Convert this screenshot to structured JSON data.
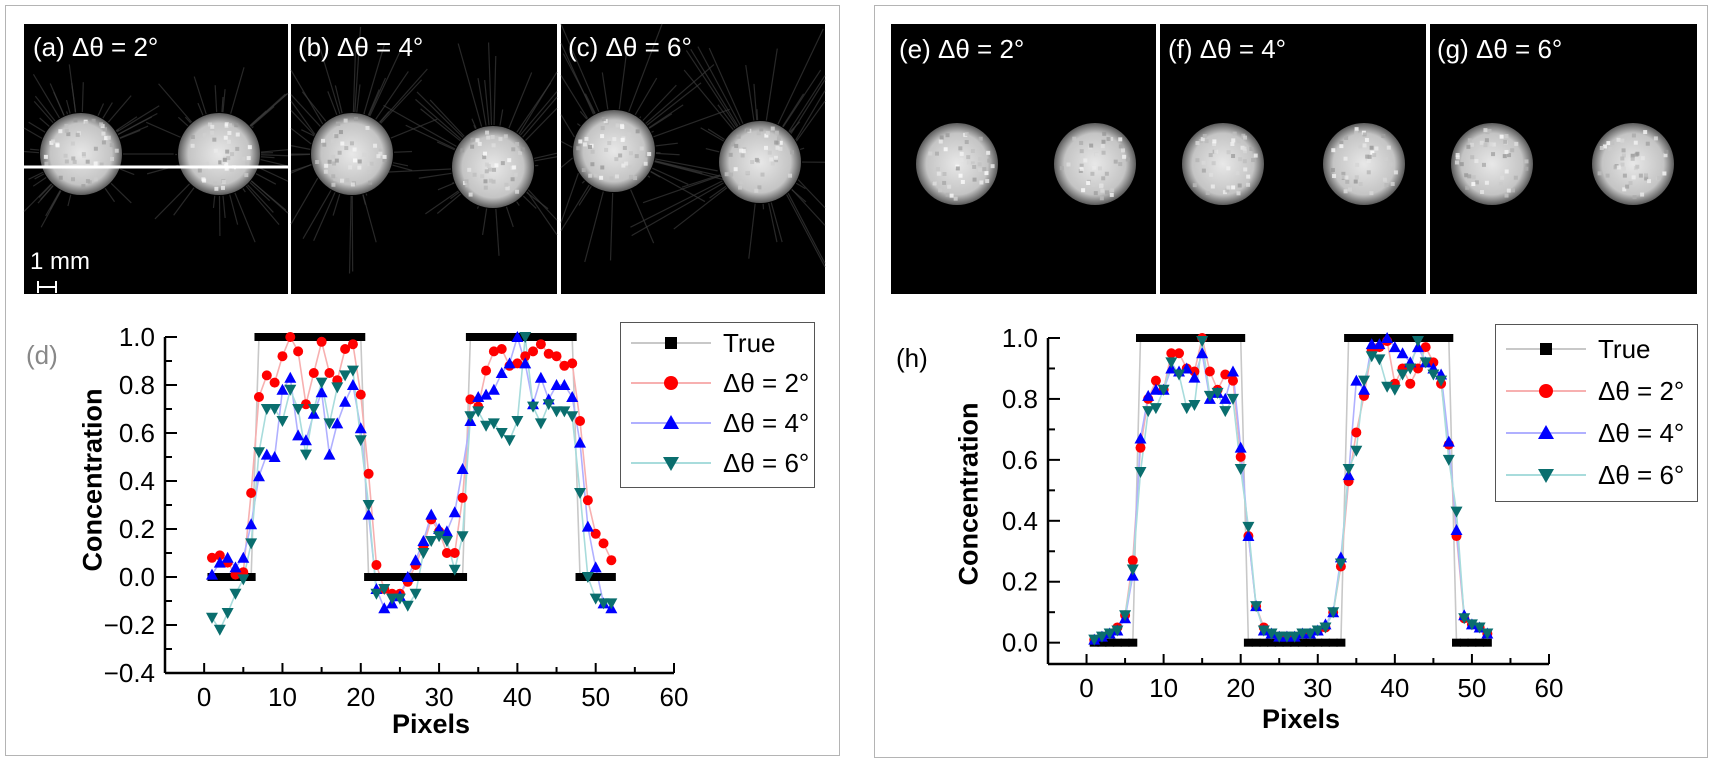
{
  "left_figure": {
    "panels": [
      {
        "label": "(a) Δθ = 2°"
      },
      {
        "label": "(b) Δθ = 4°"
      },
      {
        "label": "(c) Δθ = 6°"
      }
    ],
    "scale_bar": "1 mm"
  },
  "right_figure": {
    "panels": [
      {
        "label": "(e) Δθ = 2°"
      },
      {
        "label": "(f) Δθ = 4°"
      },
      {
        "label": "(g) Δθ = 6°"
      }
    ]
  },
  "colors": {
    "true": "#000000",
    "d2": "#ff0000",
    "d4": "#0000ff",
    "d6": "#0a6e6e"
  },
  "chart_data": [
    {
      "type": "line",
      "panel_label": "(d)",
      "xlabel": "Pixels",
      "ylabel": "Concentration",
      "xlim": [
        -5,
        60
      ],
      "ylim": [
        -0.4,
        1.0
      ],
      "xticks": [
        "0",
        "10",
        "20",
        "30",
        "40",
        "50",
        "60"
      ],
      "yticks": [
        "−0.4",
        "−0.2",
        "0.0",
        "0.2",
        "0.4",
        "0.6",
        "0.8",
        "1.0"
      ],
      "grid": false,
      "legend_position": "top-right",
      "x": [
        1,
        2,
        3,
        4,
        5,
        6,
        7,
        8,
        9,
        10,
        11,
        12,
        13,
        14,
        15,
        16,
        17,
        18,
        19,
        20,
        21,
        22,
        23,
        24,
        25,
        26,
        27,
        28,
        29,
        30,
        31,
        32,
        33,
        34,
        35,
        36,
        37,
        38,
        39,
        40,
        41,
        42,
        43,
        44,
        45,
        46,
        47,
        48,
        49,
        50,
        51,
        52
      ],
      "series": [
        {
          "name": "True",
          "marker": "square",
          "values": [
            0,
            0,
            0,
            0,
            0,
            0,
            1,
            1,
            1,
            1,
            1,
            1,
            1,
            1,
            1,
            1,
            1,
            1,
            1,
            1,
            0,
            0,
            0,
            0,
            0,
            0,
            0,
            0,
            0,
            0,
            0,
            0,
            0,
            1,
            1,
            1,
            1,
            1,
            1,
            1,
            1,
            1,
            1,
            1,
            1,
            1,
            1,
            0,
            0,
            0,
            0,
            0
          ]
        },
        {
          "name": "Δθ = 2°",
          "marker": "circle",
          "values": [
            0.08,
            0.09,
            0.06,
            0.01,
            0.02,
            0.35,
            0.75,
            0.84,
            0.81,
            0.92,
            1.0,
            0.94,
            0.72,
            0.85,
            0.98,
            0.85,
            0.82,
            0.95,
            0.97,
            0.76,
            0.43,
            0.05,
            -0.05,
            -0.07,
            -0.07,
            -0.02,
            0.05,
            0.13,
            0.24,
            0.19,
            0.1,
            0.1,
            0.33,
            0.74,
            0.71,
            0.86,
            0.94,
            0.95,
            0.88,
            0.89,
            0.92,
            0.94,
            0.97,
            0.93,
            0.92,
            0.88,
            0.89,
            0.65,
            0.32,
            0.18,
            0.14,
            0.07
          ]
        },
        {
          "name": "Δθ = 4°",
          "marker": "triangle-up",
          "values": [
            0.01,
            0.06,
            0.08,
            0.04,
            0.08,
            0.22,
            0.42,
            0.51,
            0.5,
            0.78,
            0.83,
            0.59,
            0.57,
            0.68,
            0.77,
            0.51,
            0.64,
            0.73,
            0.8,
            0.62,
            0.26,
            -0.05,
            -0.13,
            -0.11,
            -0.08,
            0.0,
            0.07,
            0.15,
            0.26,
            0.2,
            0.19,
            0.27,
            0.45,
            0.65,
            0.75,
            0.76,
            0.78,
            0.85,
            0.89,
            1.0,
            0.89,
            0.72,
            0.83,
            0.74,
            0.8,
            0.8,
            0.75,
            0.56,
            0.21,
            0.04,
            -0.11,
            -0.13
          ]
        },
        {
          "name": "Δθ = 6°",
          "marker": "triangle-down",
          "values": [
            -0.17,
            -0.22,
            -0.15,
            -0.07,
            -0.01,
            0.14,
            0.52,
            0.7,
            0.7,
            0.65,
            0.78,
            0.7,
            0.51,
            0.7,
            0.81,
            0.64,
            0.79,
            0.84,
            0.86,
            0.57,
            0.3,
            -0.07,
            -0.05,
            -0.09,
            -0.09,
            -0.12,
            -0.07,
            0.1,
            0.15,
            0.17,
            0.15,
            0.03,
            0.17,
            0.67,
            0.69,
            0.63,
            0.64,
            0.6,
            0.57,
            0.65,
            1.0,
            0.71,
            0.64,
            0.72,
            0.69,
            0.69,
            0.67,
            0.35,
            0.0,
            -0.09,
            -0.11,
            -0.11
          ]
        }
      ]
    },
    {
      "type": "line",
      "panel_label": "(h)",
      "xlabel": "Pixels",
      "ylabel": "Concentration",
      "xlim": [
        -5,
        60
      ],
      "ylim": [
        -0.07,
        1.0
      ],
      "xticks": [
        "0",
        "10",
        "20",
        "30",
        "40",
        "50",
        "60"
      ],
      "yticks": [
        "0.0",
        "0.2",
        "0.4",
        "0.6",
        "0.8",
        "1.0"
      ],
      "grid": false,
      "legend_position": "top-right",
      "x": [
        1,
        2,
        3,
        4,
        5,
        6,
        7,
        8,
        9,
        10,
        11,
        12,
        13,
        14,
        15,
        16,
        17,
        18,
        19,
        20,
        21,
        22,
        23,
        24,
        25,
        26,
        27,
        28,
        29,
        30,
        31,
        32,
        33,
        34,
        35,
        36,
        37,
        38,
        39,
        40,
        41,
        42,
        43,
        44,
        45,
        46,
        47,
        48,
        49,
        50,
        51,
        52
      ],
      "series": [
        {
          "name": "True",
          "marker": "square",
          "values": [
            0,
            0,
            0,
            0,
            0,
            0,
            1,
            1,
            1,
            1,
            1,
            1,
            1,
            1,
            1,
            1,
            1,
            1,
            1,
            1,
            0,
            0,
            0,
            0,
            0,
            0,
            0,
            0,
            0,
            0,
            0,
            0,
            0,
            1,
            1,
            1,
            1,
            1,
            1,
            1,
            1,
            1,
            1,
            1,
            1,
            1,
            1,
            0,
            0,
            0,
            0,
            0
          ]
        },
        {
          "name": "Δθ = 2°",
          "marker": "circle",
          "values": [
            0.01,
            0.02,
            0.03,
            0.05,
            0.09,
            0.27,
            0.64,
            0.8,
            0.86,
            0.83,
            0.95,
            0.95,
            0.9,
            0.89,
            1.0,
            0.89,
            0.83,
            0.88,
            0.86,
            0.61,
            0.35,
            0.12,
            0.05,
            0.03,
            0.02,
            0.02,
            0.02,
            0.03,
            0.03,
            0.04,
            0.05,
            0.1,
            0.25,
            0.53,
            0.69,
            0.81,
            0.96,
            0.97,
            0.99,
            0.85,
            0.9,
            0.85,
            0.9,
            0.97,
            0.92,
            0.85,
            0.65,
            0.35,
            0.08,
            0.06,
            0.05,
            0.03
          ]
        },
        {
          "name": "Δθ = 4°",
          "marker": "triangle-up",
          "values": [
            0.01,
            0.02,
            0.03,
            0.04,
            0.08,
            0.22,
            0.67,
            0.81,
            0.83,
            0.83,
            0.9,
            0.89,
            0.9,
            0.87,
            0.95,
            0.8,
            0.82,
            0.8,
            0.89,
            0.64,
            0.35,
            0.12,
            0.04,
            0.03,
            0.02,
            0.02,
            0.02,
            0.03,
            0.03,
            0.04,
            0.06,
            0.1,
            0.28,
            0.55,
            0.86,
            0.83,
            0.98,
            0.98,
            1.0,
            0.97,
            0.95,
            0.92,
            0.97,
            0.92,
            0.9,
            0.88,
            0.66,
            0.37,
            0.09,
            0.06,
            0.05,
            0.03
          ]
        },
        {
          "name": "Δθ = 6°",
          "marker": "triangle-down",
          "values": [
            0.01,
            0.02,
            0.03,
            0.04,
            0.09,
            0.24,
            0.56,
            0.76,
            0.77,
            0.83,
            0.92,
            0.88,
            0.77,
            0.78,
            0.99,
            0.81,
            0.82,
            0.76,
            0.8,
            0.57,
            0.38,
            0.12,
            0.04,
            0.03,
            0.02,
            0.02,
            0.02,
            0.03,
            0.03,
            0.04,
            0.05,
            0.1,
            0.26,
            0.57,
            0.63,
            0.86,
            0.94,
            0.93,
            0.84,
            0.83,
            0.88,
            0.9,
            0.99,
            0.92,
            0.88,
            0.86,
            0.6,
            0.43,
            0.08,
            0.06,
            0.05,
            0.03
          ]
        }
      ]
    }
  ]
}
